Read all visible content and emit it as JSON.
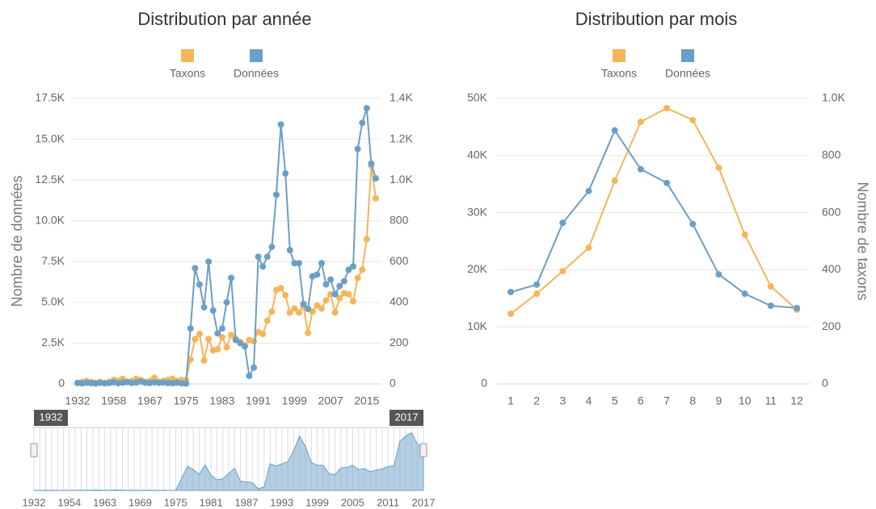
{
  "chart_data": [
    {
      "type": "line",
      "title": "Distribution par année",
      "ylabel": "Nombre de données",
      "categories": [
        "1932",
        null,
        null,
        null,
        null,
        null,
        "1954",
        null,
        "1958",
        null,
        null,
        null,
        "1963",
        null,
        null,
        null,
        "1967",
        null,
        "1969",
        null,
        null,
        null,
        null,
        null,
        "1975",
        null,
        null,
        null,
        null,
        null,
        "1981",
        null,
        "1983",
        null,
        null,
        null,
        "1987",
        null,
        null,
        null,
        "1991",
        null,
        "1993",
        null,
        null,
        null,
        null,
        null,
        "1999",
        null,
        null,
        null,
        null,
        null,
        "2005",
        null,
        "2007",
        null,
        null,
        null,
        "2011",
        null,
        null,
        null,
        "2015",
        null,
        "2017"
      ],
      "series": [
        {
          "name": "Taxons",
          "color": "#f5b55a",
          "axis": "y2",
          "values": [
            5,
            10,
            15,
            10,
            5,
            10,
            5,
            10,
            20,
            15,
            25,
            10,
            15,
            25,
            20,
            10,
            15,
            30,
            10,
            15,
            20,
            25,
            15,
            20,
            20,
            120,
            220,
            245,
            115,
            220,
            165,
            170,
            230,
            180,
            240,
            220,
            205,
            190,
            215,
            210,
            255,
            245,
            310,
            355,
            460,
            470,
            435,
            350,
            370,
            350,
            380,
            250,
            355,
            385,
            370,
            410,
            440,
            350,
            420,
            445,
            440,
            405,
            520,
            560,
            710,
            1070,
            910
          ]
        },
        {
          "name": "Données",
          "color": "#6a9fc7",
          "values": [
            60,
            40,
            80,
            50,
            30,
            70,
            40,
            60,
            100,
            50,
            80,
            120,
            60,
            90,
            150,
            80,
            60,
            100,
            70,
            90,
            60,
            50,
            80,
            40,
            30,
            3400,
            7100,
            6100,
            4700,
            7500,
            4500,
            3100,
            3400,
            5000,
            6500,
            2700,
            2500,
            2300,
            500,
            1000,
            7800,
            7200,
            7800,
            8400,
            11600,
            15900,
            12900,
            8200,
            7400,
            7400,
            4900,
            4600,
            6600,
            6700,
            7400,
            6100,
            6400,
            5500,
            6000,
            6300,
            7000,
            7200,
            14400,
            16000,
            16900,
            13500,
            12600
          ]
        }
      ],
      "ylim": [
        0,
        17500
      ],
      "yticks": [
        0,
        {
          "value": 2500,
          "label": "2.5K"
        },
        {
          "value": 5000,
          "label": "5.0K"
        },
        {
          "value": 7500,
          "label": "7.5K"
        },
        {
          "value": 10000,
          "label": "10.0K"
        },
        {
          "value": 12500,
          "label": "12.5K"
        },
        {
          "value": 15000,
          "label": "15.0K"
        },
        {
          "value": 17500,
          "label": "17.5K"
        }
      ],
      "y2lim": [
        0,
        1400
      ],
      "y2ticks": [
        0,
        200,
        400,
        600,
        800,
        {
          "value": 1000,
          "label": "1.0K"
        },
        {
          "value": 1200,
          "label": "1.2K"
        },
        {
          "value": 1400,
          "label": "1.4K"
        }
      ],
      "grid": true,
      "legend": "top"
    },
    {
      "type": "line",
      "title": "Distribution par mois",
      "y2label": "Nombre de taxons",
      "categories": [
        "1",
        "2",
        "3",
        "4",
        "5",
        "6",
        "7",
        "8",
        "9",
        "10",
        "11",
        "12"
      ],
      "series": [
        {
          "name": "Taxons",
          "color": "#f5b55a",
          "axis": "y2",
          "values": [
            246,
            316,
            395,
            477,
            712,
            918,
            966,
            924,
            757,
            523,
            342,
            260
          ]
        },
        {
          "name": "Données",
          "color": "#6a9fc7",
          "values": [
            16100,
            17400,
            28200,
            33800,
            44400,
            37600,
            35200,
            28000,
            19200,
            15800,
            13700,
            13300
          ]
        }
      ],
      "ylim": [
        0,
        50000
      ],
      "yticks": [
        0,
        {
          "value": 10000,
          "label": "10K"
        },
        {
          "value": 20000,
          "label": "20K"
        },
        {
          "value": 30000,
          "label": "30K"
        },
        {
          "value": 40000,
          "label": "40K"
        },
        {
          "value": 50000,
          "label": "50K"
        }
      ],
      "y2lim": [
        0,
        1000
      ],
      "y2ticks": [
        0,
        200,
        400,
        600,
        800,
        {
          "value": 1000,
          "label": "1.0K"
        }
      ],
      "grid": true,
      "legend": "top"
    }
  ]
}
